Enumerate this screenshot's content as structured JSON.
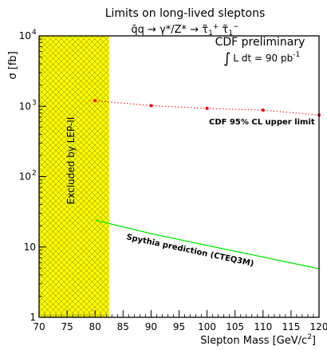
{
  "chart_data": {
    "type": "line",
    "title": "Limits on long-lived sleptons",
    "subtitle": {
      "lhs": "q̄q",
      "mid": "γ*/Z*",
      "tau": "τ̃",
      "sub": "1",
      "sup_plus": "+",
      "sup_minus": "−"
    },
    "xlabel": "Slepton Mass [GeV/c",
    "xlabel_sup": "2",
    "xlabel_close": "]",
    "ylabel": "σ [fb]",
    "xlim": [
      70,
      120
    ],
    "ylim": [
      1,
      10000
    ],
    "y_scale": "log",
    "x_ticks": [
      70,
      75,
      80,
      85,
      90,
      95,
      100,
      105,
      110,
      115,
      120
    ],
    "y_ticks": [
      {
        "value": 1,
        "base": "1",
        "exp": ""
      },
      {
        "value": 10,
        "base": "10",
        "exp": ""
      },
      {
        "value": 100,
        "base": "10",
        "exp": "2"
      },
      {
        "value": 1000,
        "base": "10",
        "exp": "3"
      },
      {
        "value": 10000,
        "base": "10",
        "exp": "4"
      }
    ],
    "excluded_region": {
      "x": [
        70,
        82.5
      ],
      "label": "Excluded by LEP-II",
      "color": "#ffff00"
    },
    "annotation": {
      "line1": "CDF preliminary",
      "line2_prefix": "L dt = 90 pb",
      "line2_sup": "-1"
    },
    "series": [
      {
        "name": "CDF 95% CL upper limit",
        "color": "#ff0000",
        "style": "dotted-with-markers",
        "x": [
          80,
          90,
          100,
          110,
          120
        ],
        "y": [
          1200,
          1020,
          930,
          880,
          750
        ]
      },
      {
        "name": "Spythia prediction (CTEQ3M)",
        "color": "#00ee00",
        "style": "solid",
        "x": [
          80,
          90,
          100,
          110,
          120
        ],
        "y": [
          24,
          15.5,
          10.5,
          7.2,
          4.9
        ]
      }
    ]
  }
}
